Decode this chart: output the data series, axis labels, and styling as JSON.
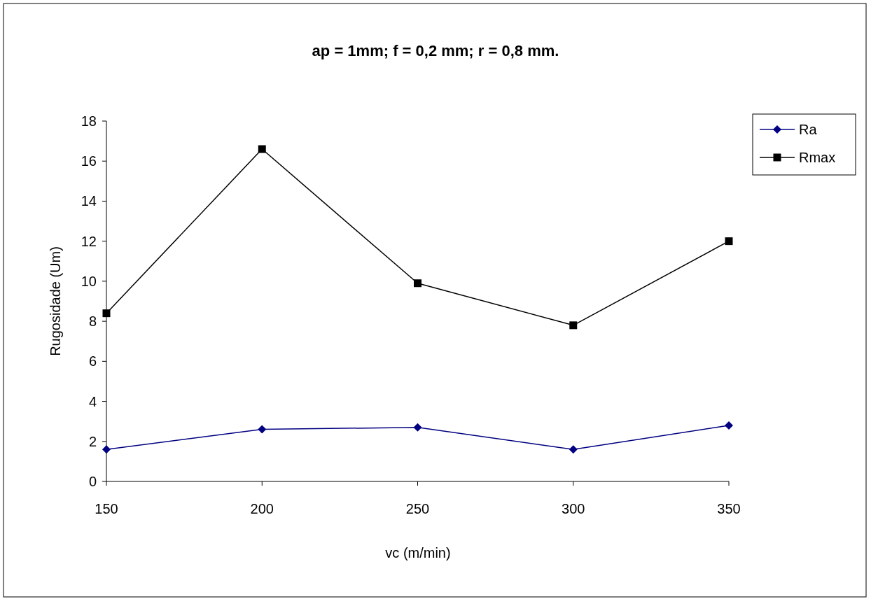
{
  "chart_data": {
    "type": "line",
    "title": "ap = 1mm; f = 0,2 mm; r = 0,8 mm.",
    "xlabel": "vc (m/min)",
    "ylabel": "Rugosidade (Um)",
    "x": [
      150,
      200,
      250,
      300,
      350
    ],
    "series": [
      {
        "name": "Ra",
        "color": "#000080",
        "marker": "diamond",
        "values": [
          1.6,
          2.6,
          2.7,
          1.6,
          2.8
        ]
      },
      {
        "name": "Rmax",
        "color": "#000000",
        "marker": "square",
        "values": [
          8.4,
          16.6,
          9.9,
          7.8,
          12.0
        ]
      }
    ],
    "xlim": [
      150,
      350
    ],
    "xticks": [
      150,
      200,
      250,
      300,
      350
    ],
    "ylim": [
      0,
      18
    ],
    "yticks": [
      0,
      2,
      4,
      6,
      8,
      10,
      12,
      14,
      16,
      18
    ],
    "grid": false,
    "legend": "right",
    "line_style": "solid"
  }
}
